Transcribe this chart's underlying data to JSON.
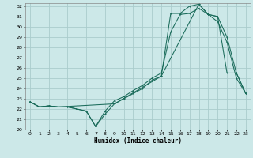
{
  "title": "",
  "xlabel": "Humidex (Indice chaleur)",
  "background_color": "#cce8e8",
  "grid_color": "#aacccc",
  "line_color": "#1a6b5a",
  "xlim": [
    -0.5,
    23.5
  ],
  "ylim": [
    20,
    32.3
  ],
  "xticks": [
    0,
    1,
    2,
    3,
    4,
    5,
    6,
    7,
    8,
    9,
    10,
    11,
    12,
    13,
    14,
    15,
    16,
    17,
    18,
    19,
    20,
    21,
    22,
    23
  ],
  "yticks": [
    20,
    21,
    22,
    23,
    24,
    25,
    26,
    27,
    28,
    29,
    30,
    31,
    32
  ],
  "line1_x": [
    0,
    1,
    2,
    3,
    4,
    5,
    6,
    7,
    8,
    9,
    10,
    11,
    12,
    13,
    14,
    15,
    16,
    17,
    18,
    19,
    20,
    21,
    22,
    23
  ],
  "line1_y": [
    22.7,
    22.2,
    22.3,
    22.2,
    22.2,
    22.0,
    21.8,
    20.3,
    21.8,
    22.8,
    23.2,
    23.8,
    24.3,
    25.0,
    25.5,
    29.5,
    31.2,
    31.3,
    31.8,
    31.2,
    31.0,
    29.0,
    25.5,
    23.5
  ],
  "line2_x": [
    0,
    1,
    2,
    3,
    4,
    5,
    6,
    7,
    8,
    9,
    10,
    11,
    12,
    13,
    14,
    15,
    16,
    17,
    18,
    19,
    20,
    21,
    22,
    23
  ],
  "line2_y": [
    22.7,
    22.2,
    22.3,
    22.2,
    22.2,
    22.0,
    21.8,
    20.3,
    21.5,
    22.5,
    23.0,
    23.5,
    24.0,
    24.8,
    25.2,
    31.3,
    31.3,
    32.0,
    32.2,
    31.2,
    30.5,
    28.5,
    25.0,
    23.5
  ],
  "line3_x": [
    0,
    1,
    2,
    3,
    9,
    14,
    18,
    19,
    20,
    21,
    22,
    23
  ],
  "line3_y": [
    22.7,
    22.2,
    22.3,
    22.2,
    22.5,
    25.2,
    32.2,
    31.2,
    31.0,
    25.5,
    25.5,
    23.5
  ]
}
